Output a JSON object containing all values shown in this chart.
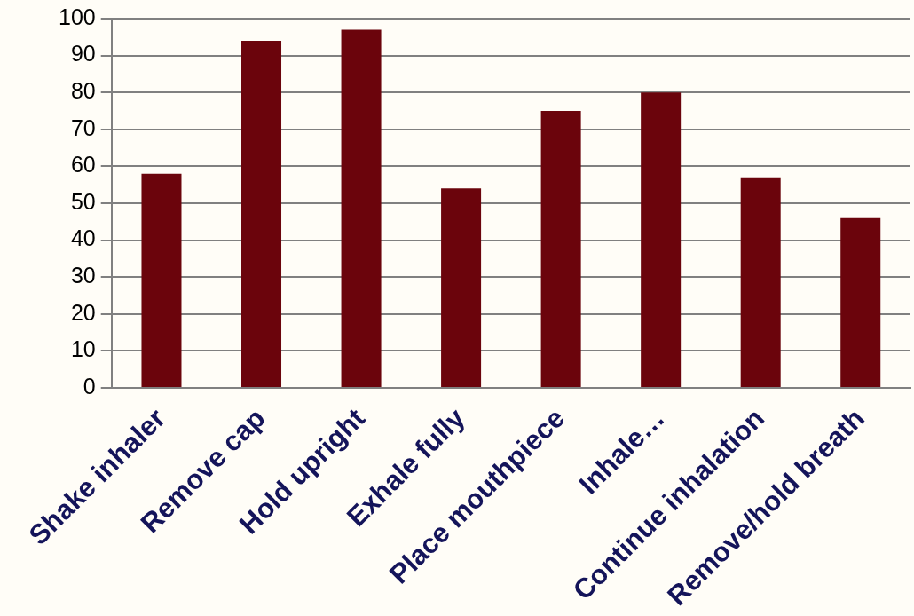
{
  "chart_data": {
    "type": "bar",
    "categories": [
      "Shake inhaler",
      "Remove cap",
      "Hold upright",
      "Exhale fully",
      "Place mouthpiece",
      "Inhale…",
      "Continue inhalation",
      "Remove/hold breath"
    ],
    "values": [
      58,
      94,
      97,
      54,
      75,
      80,
      57,
      46
    ],
    "color": "#6b040c",
    "ylim": [
      0,
      100
    ],
    "yticks": [
      0,
      10,
      20,
      30,
      40,
      50,
      60,
      70,
      80,
      90,
      100
    ],
    "grid": "y",
    "legend": false
  }
}
